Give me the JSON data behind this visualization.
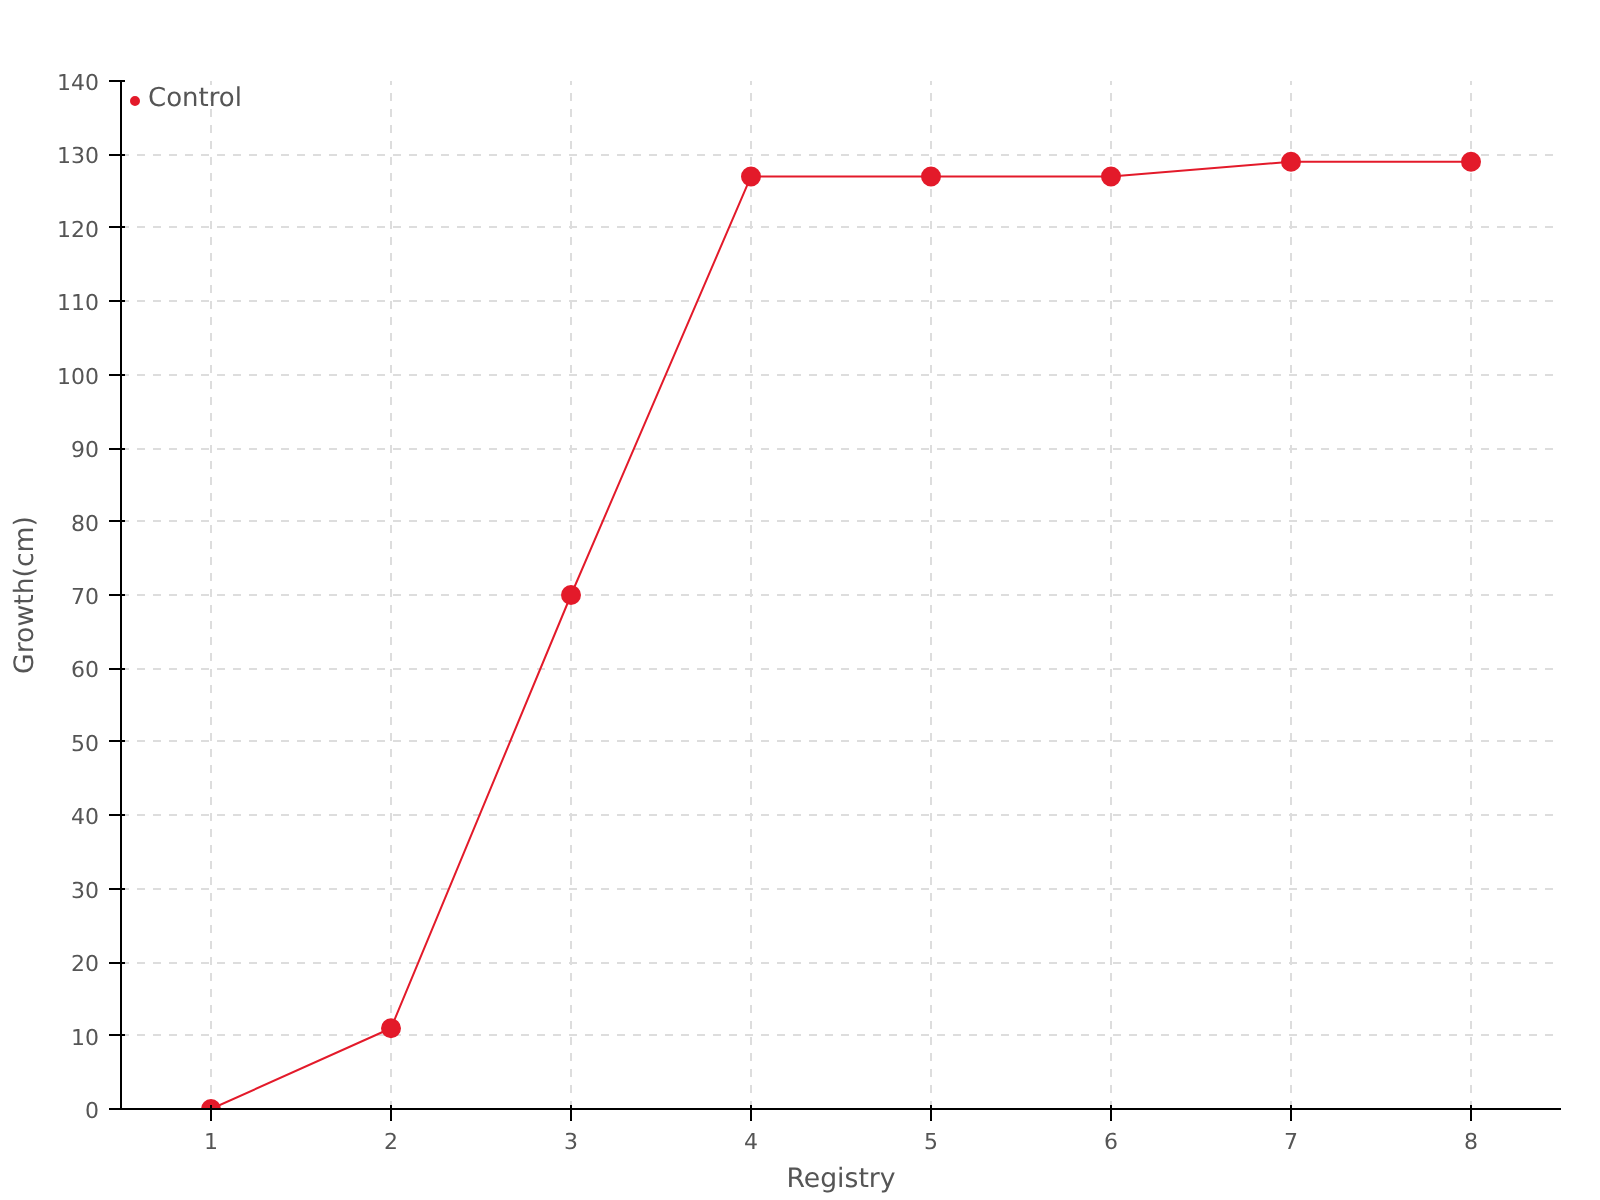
{
  "chart_data": {
    "type": "line",
    "xlabel": "Registry",
    "ylabel": "Growth(cm)",
    "categories": [
      "1",
      "2",
      "3",
      "4",
      "5",
      "6",
      "7",
      "8"
    ],
    "series": [
      {
        "name": "Control",
        "color": "#e31a2a",
        "values": [
          0,
          11,
          70,
          127,
          127,
          127,
          129,
          129
        ]
      }
    ],
    "ylim": [
      0,
      140
    ],
    "yticks": [
      0,
      10,
      20,
      30,
      40,
      50,
      60,
      70,
      80,
      90,
      100,
      110,
      120,
      130,
      140
    ],
    "grid": true,
    "legend": "top left",
    "marker": "circle",
    "line_style": "solid"
  }
}
